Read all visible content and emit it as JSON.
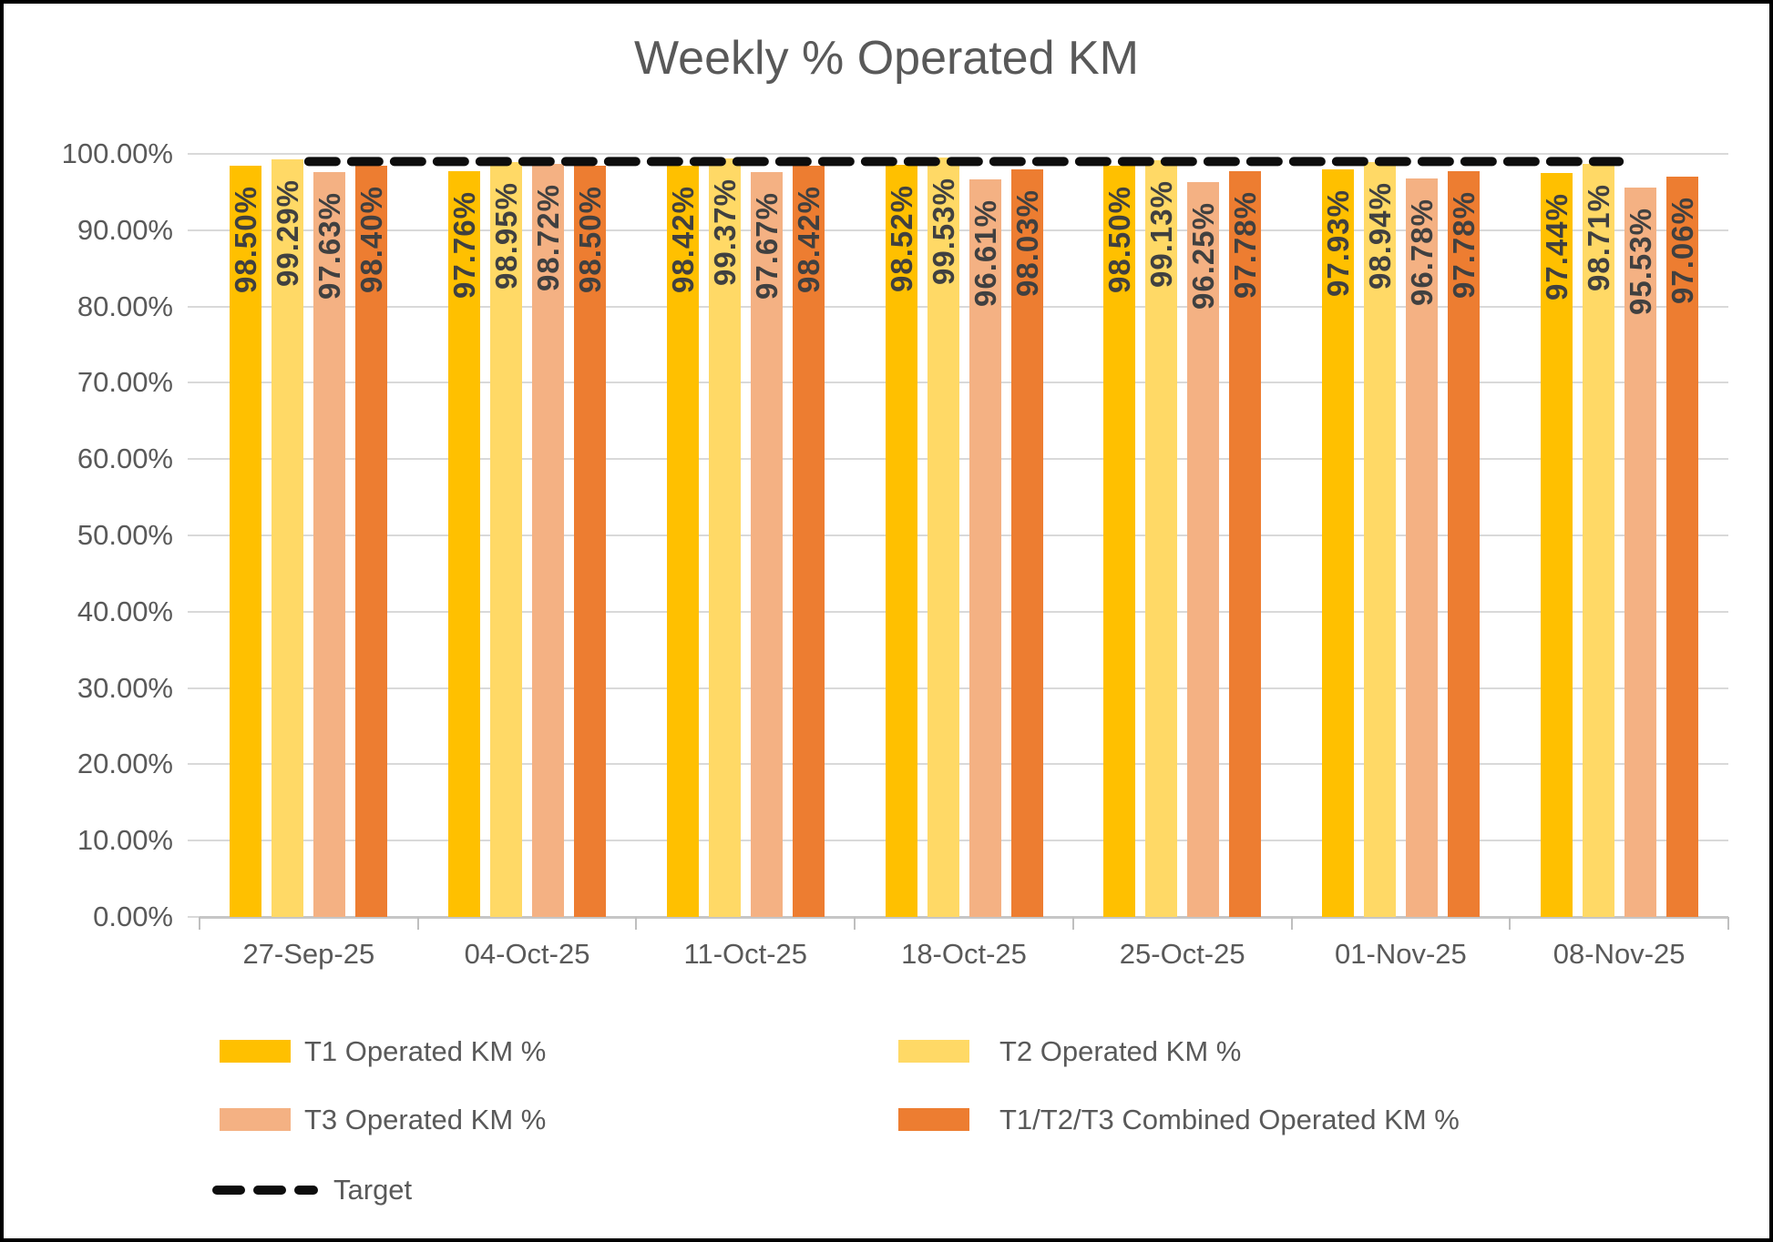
{
  "chart_data": {
    "type": "bar",
    "title": "Weekly % Operated KM",
    "categories": [
      "27-Sep-25",
      "04-Oct-25",
      "11-Oct-25",
      "18-Oct-25",
      "25-Oct-25",
      "01-Nov-25",
      "08-Nov-25"
    ],
    "series": [
      {
        "name": "T1 Operated KM %",
        "color": "#FFC000",
        "values": [
          98.5,
          97.76,
          98.42,
          98.52,
          98.5,
          97.93,
          97.44
        ],
        "labels": [
          "98.50%",
          "97.76%",
          "98.42%",
          "98.52%",
          "98.50%",
          "97.93%",
          "97.44%"
        ]
      },
      {
        "name": "T2 Operated KM %",
        "color": "#FFD966",
        "values": [
          99.29,
          98.95,
          99.37,
          99.53,
          99.13,
          98.94,
          98.71
        ],
        "labels": [
          "99.29%",
          "98.95%",
          "99.37%",
          "99.53%",
          "99.13%",
          "98.94%",
          "98.71%"
        ]
      },
      {
        "name": "T3 Operated KM %",
        "color": "#F4B183",
        "values": [
          97.63,
          98.72,
          97.67,
          96.61,
          96.25,
          96.78,
          95.53
        ],
        "labels": [
          "97.63%",
          "98.72%",
          "97.67%",
          "96.61%",
          "96.25%",
          "96.78%",
          "95.53%"
        ]
      },
      {
        "name": "T1/T2/T3 Combined Operated KM %",
        "color": "#ED7D31",
        "values": [
          98.4,
          98.5,
          98.42,
          98.03,
          97.78,
          97.78,
          97.06
        ],
        "labels": [
          "98.40%",
          "98.50%",
          "98.42%",
          "98.03%",
          "97.78%",
          "97.78%",
          "97.06%"
        ]
      }
    ],
    "target": {
      "name": "Target",
      "value": 99,
      "color": "#0d0d0d",
      "style": "dashed"
    },
    "ylim": [
      0,
      100
    ],
    "ytick_labels": [
      "0.00%",
      "10.00%",
      "20.00%",
      "30.00%",
      "40.00%",
      "50.00%",
      "60.00%",
      "70.00%",
      "80.00%",
      "90.00%",
      "100.00%"
    ],
    "grid": true,
    "legend_position": "bottom",
    "axis_text_color": "#595959",
    "data_label_color": "#404040",
    "gridline_color": "#D9D9D9"
  }
}
